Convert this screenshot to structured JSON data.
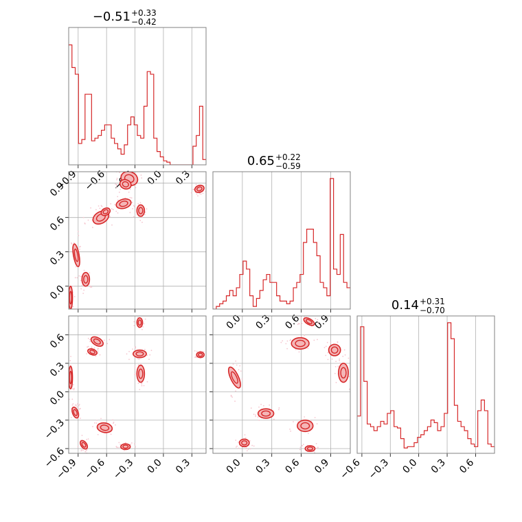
{
  "figure": {
    "type": "corner-plot",
    "accent_color": "#d62728",
    "fill_color": "#f4b6b7",
    "scatter_color": "#f5c6cf",
    "grid": true
  },
  "chart_data": [
    {
      "type": "histogram",
      "panel": "p0_0",
      "title_value": "−0.51",
      "title_plus": "+0.33",
      "title_minus": "−0.42",
      "xlim": [
        -1.0,
        0.45
      ],
      "x_ticks": [
        -0.9,
        -0.6,
        -0.3,
        0.0,
        0.3
      ],
      "x_tick_labels": [
        "−0.9",
        "−0.6",
        "−0.3",
        "0.0",
        "0.3"
      ],
      "show_x_tick_labels": true,
      "ymax": 1.0,
      "values": [
        0.9,
        0.73,
        0.68,
        0.16,
        0.19,
        0.53,
        0.53,
        0.18,
        0.2,
        0.22,
        0.26,
        0.3,
        0.3,
        0.2,
        0.16,
        0.12,
        0.08,
        0.15,
        0.3,
        0.36,
        0.3,
        0.22,
        0.2,
        0.44,
        0.7,
        0.68,
        0.2,
        0.1,
        0.06,
        0.03,
        0.02,
        0.0,
        0.0,
        0.0,
        0.0,
        0.0,
        0.0,
        0.0,
        0.14,
        0.22,
        0.44,
        0.04
      ]
    },
    {
      "type": "histogram",
      "panel": "p1_1",
      "title_value": "0.65",
      "title_plus": "+0.22",
      "title_minus": "−0.59",
      "xlim": [
        -0.3,
        1.1
      ],
      "x_ticks": [
        0.0,
        0.3,
        0.6,
        0.9
      ],
      "x_tick_labels": [
        "0.0",
        "0.3",
        "0.6",
        "0.9"
      ],
      "show_x_tick_labels": true,
      "ymax": 1.0,
      "values": [
        0.0,
        0.02,
        0.04,
        0.06,
        0.1,
        0.14,
        0.1,
        0.16,
        0.26,
        0.36,
        0.3,
        0.1,
        0.02,
        0.08,
        0.14,
        0.22,
        0.26,
        0.2,
        0.2,
        0.1,
        0.06,
        0.06,
        0.04,
        0.06,
        0.16,
        0.2,
        0.26,
        0.5,
        0.6,
        0.6,
        0.5,
        0.4,
        0.2,
        0.16,
        0.1,
        0.98,
        0.3,
        0.26,
        0.56,
        0.2,
        0.16
      ]
    },
    {
      "type": "histogram",
      "panel": "p2_2",
      "title_value": "0.14",
      "title_plus": "+0.31",
      "title_minus": "−0.70",
      "xlim": [
        -0.65,
        0.8
      ],
      "x_ticks": [
        -0.6,
        -0.3,
        0.0,
        0.3,
        0.6
      ],
      "x_tick_labels": [
        "−0.6",
        "−0.3",
        "0.0",
        "0.3",
        "0.6"
      ],
      "show_x_tick_labels": true,
      "ymax": 1.0,
      "values": [
        0.28,
        0.95,
        0.54,
        0.22,
        0.2,
        0.17,
        0.2,
        0.24,
        0.22,
        0.3,
        0.32,
        0.2,
        0.19,
        0.11,
        0.04,
        0.05,
        0.05,
        0.08,
        0.12,
        0.14,
        0.17,
        0.2,
        0.25,
        0.23,
        0.17,
        0.2,
        0.3,
        0.98,
        0.86,
        0.36,
        0.24,
        0.2,
        0.17,
        0.11,
        0.07,
        0.05,
        0.32,
        0.4,
        0.32,
        0.07,
        0.05
      ]
    },
    {
      "type": "contour2d",
      "panel": "p1_0",
      "xlim": [
        -1.0,
        0.45
      ],
      "ylim": [
        -0.2,
        1.0
      ],
      "x_ticks": [
        -0.9,
        -0.6,
        -0.3,
        0.0,
        0.3
      ],
      "y_ticks": [
        0.0,
        0.3,
        0.6,
        0.9
      ],
      "y_tick_labels": [
        "0.0",
        "0.3",
        "0.6",
        "0.9"
      ],
      "show_x_tick_labels": false,
      "show_y_tick_labels": true,
      "blobs": [
        {
          "cx": -0.36,
          "cy": 0.94,
          "rx": 0.09,
          "ry": 0.06,
          "rot": -20
        },
        {
          "cx": -0.4,
          "cy": 0.89,
          "rx": 0.06,
          "ry": 0.04,
          "rot": -20
        },
        {
          "cx": -0.42,
          "cy": 0.72,
          "rx": 0.08,
          "ry": 0.04,
          "rot": 15
        },
        {
          "cx": -0.24,
          "cy": 0.66,
          "rx": 0.04,
          "ry": 0.05,
          "rot": 0
        },
        {
          "cx": -0.66,
          "cy": 0.6,
          "rx": 0.09,
          "ry": 0.05,
          "rot": 30
        },
        {
          "cx": -0.61,
          "cy": 0.65,
          "rx": 0.05,
          "ry": 0.03,
          "rot": 30
        },
        {
          "cx": -0.92,
          "cy": 0.27,
          "rx": 0.03,
          "ry": 0.1,
          "rot": 10
        },
        {
          "cx": -0.82,
          "cy": 0.06,
          "rx": 0.04,
          "ry": 0.06,
          "rot": 0
        },
        {
          "cx": -0.98,
          "cy": -0.1,
          "rx": 0.02,
          "ry": 0.1,
          "rot": 0
        },
        {
          "cx": 0.38,
          "cy": 0.85,
          "rx": 0.05,
          "ry": 0.03,
          "rot": 20
        }
      ]
    },
    {
      "type": "contour2d",
      "panel": "p2_0",
      "xlim": [
        -1.0,
        0.45
      ],
      "ylim": [
        -0.65,
        0.8
      ],
      "x_ticks": [
        -0.9,
        -0.6,
        -0.3,
        0.0,
        0.3
      ],
      "x_tick_labels": [
        "−0.9",
        "−0.6",
        "−0.3",
        "0.0",
        "0.3"
      ],
      "y_ticks": [
        -0.6,
        -0.3,
        0.0,
        0.3,
        0.6
      ],
      "y_tick_labels": [
        "−0.6",
        "−0.3",
        "0.0",
        "0.3",
        "0.6"
      ],
      "show_x_tick_labels": true,
      "show_y_tick_labels": true,
      "blobs": [
        {
          "cx": -0.25,
          "cy": 0.73,
          "rx": 0.03,
          "ry": 0.05,
          "rot": 0
        },
        {
          "cx": -0.7,
          "cy": 0.53,
          "rx": 0.07,
          "ry": 0.04,
          "rot": -30
        },
        {
          "cx": -0.75,
          "cy": 0.42,
          "rx": 0.05,
          "ry": 0.03,
          "rot": -20
        },
        {
          "cx": -0.25,
          "cy": 0.4,
          "rx": 0.07,
          "ry": 0.04,
          "rot": 0
        },
        {
          "cx": -0.24,
          "cy": 0.19,
          "rx": 0.04,
          "ry": 0.09,
          "rot": 0
        },
        {
          "cx": 0.39,
          "cy": 0.39,
          "rx": 0.04,
          "ry": 0.03,
          "rot": 0
        },
        {
          "cx": -0.98,
          "cy": 0.15,
          "rx": 0.02,
          "ry": 0.12,
          "rot": 0
        },
        {
          "cx": -0.93,
          "cy": -0.22,
          "rx": 0.03,
          "ry": 0.06,
          "rot": 20
        },
        {
          "cx": -0.62,
          "cy": -0.38,
          "rx": 0.08,
          "ry": 0.05,
          "rot": -10
        },
        {
          "cx": -0.4,
          "cy": -0.58,
          "rx": 0.05,
          "ry": 0.03,
          "rot": 0
        },
        {
          "cx": -0.84,
          "cy": -0.56,
          "rx": 0.03,
          "ry": 0.05,
          "rot": 35
        }
      ]
    },
    {
      "type": "contour2d",
      "panel": "p2_1",
      "xlim": [
        -0.3,
        1.1
      ],
      "ylim": [
        -0.65,
        0.8
      ],
      "x_ticks": [
        0.0,
        0.3,
        0.6,
        0.9
      ],
      "x_tick_labels": [
        "0.0",
        "0.3",
        "0.6",
        "0.9"
      ],
      "y_ticks": [
        -0.6,
        -0.3,
        0.0,
        0.3,
        0.6
      ],
      "show_x_tick_labels": true,
      "show_y_tick_labels": false,
      "blobs": [
        {
          "cx": 0.68,
          "cy": 0.74,
          "rx": 0.06,
          "ry": 0.03,
          "rot": -30
        },
        {
          "cx": 0.59,
          "cy": 0.51,
          "rx": 0.09,
          "ry": 0.06,
          "rot": 0
        },
        {
          "cx": 0.94,
          "cy": 0.44,
          "rx": 0.06,
          "ry": 0.06,
          "rot": 0
        },
        {
          "cx": 1.03,
          "cy": 0.2,
          "rx": 0.05,
          "ry": 0.1,
          "rot": 0
        },
        {
          "cx": -0.08,
          "cy": 0.15,
          "rx": 0.04,
          "ry": 0.12,
          "rot": 25
        },
        {
          "cx": 0.24,
          "cy": -0.23,
          "rx": 0.08,
          "ry": 0.05,
          "rot": 0
        },
        {
          "cx": 0.64,
          "cy": -0.36,
          "rx": 0.08,
          "ry": 0.06,
          "rot": 0
        },
        {
          "cx": 0.02,
          "cy": -0.54,
          "rx": 0.05,
          "ry": 0.04,
          "rot": 0
        },
        {
          "cx": 0.69,
          "cy": -0.6,
          "rx": 0.05,
          "ry": 0.03,
          "rot": 0
        }
      ]
    }
  ]
}
